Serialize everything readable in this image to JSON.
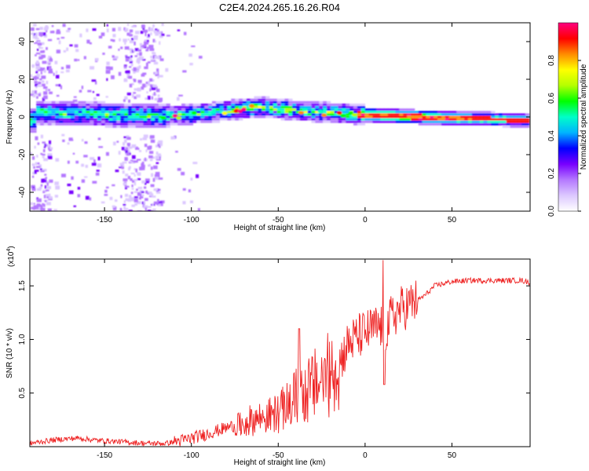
{
  "title": "C2E4.2024.265.16.26.R04",
  "chart_data": [
    {
      "type": "heatmap",
      "title": "C2E4.2024.265.16.26.R04",
      "xlabel": "Height of straight line (km)",
      "ylabel": "Frequency (Hz)",
      "xlim": [
        -193,
        95
      ],
      "ylim": [
        -50,
        50
      ],
      "xticks": [
        -150,
        -100,
        -50,
        0,
        50
      ],
      "yticks": [
        -40,
        -20,
        0,
        20,
        40
      ],
      "colorbar": {
        "label": "Normalized spectral amplitude",
        "range": [
          0,
          1
        ],
        "ticks": [
          "0.0",
          "0.2",
          "0.4",
          "0.6",
          "0.8"
        ],
        "colors": [
          "#ffffff",
          "#dcc8ff",
          "#b478ff",
          "#7800ff",
          "#0000ff",
          "#00b4ff",
          "#00ffc8",
          "#00ff00",
          "#b4ff00",
          "#ffff00",
          "#ff8c00",
          "#ff0000",
          "#ff0080"
        ]
      },
      "band_center_hz": [
        {
          "km": -190,
          "hz": 2
        },
        {
          "km": -150,
          "hz": 1
        },
        {
          "km": -120,
          "hz": 0
        },
        {
          "km": -100,
          "hz": 1
        },
        {
          "km": -80,
          "hz": 3
        },
        {
          "km": -60,
          "hz": 5
        },
        {
          "km": -40,
          "hz": 3
        },
        {
          "km": -20,
          "hz": 2
        },
        {
          "km": -5,
          "hz": 1
        },
        {
          "km": 20,
          "hz": 0
        },
        {
          "km": 50,
          "hz": -1
        },
        {
          "km": 95,
          "hz": -2
        }
      ]
    },
    {
      "type": "line",
      "xlabel": "Height of straight line (km)",
      "ylabel": "SNR (10 * v/v)",
      "y_scale_label": "(x10",
      "y_scale_exp": "4",
      "xlim": [
        -193,
        95
      ],
      "ylim": [
        0,
        1.75
      ],
      "xticks": [
        -150,
        -100,
        -50,
        0,
        50
      ],
      "yticks": [
        "0.5",
        "1.0",
        "1.5"
      ],
      "series": [
        {
          "name": "SNR",
          "color": "#ee2222",
          "x": [
            -193,
            -185,
            -175,
            -165,
            -155,
            -145,
            -135,
            -125,
            -115,
            -105,
            -95,
            -85,
            -75,
            -70,
            -65,
            -60,
            -55,
            -50,
            -45,
            -40,
            -38,
            -35,
            -30,
            -25,
            -20,
            -15,
            -10,
            -5,
            0,
            5,
            10,
            12,
            15,
            20,
            25,
            30,
            35,
            40,
            50,
            60,
            70,
            80,
            90,
            95
          ],
          "y": [
            0.03,
            0.05,
            0.07,
            0.08,
            0.06,
            0.05,
            0.04,
            0.03,
            0.03,
            0.06,
            0.1,
            0.15,
            0.2,
            0.24,
            0.28,
            0.3,
            0.32,
            0.35,
            0.42,
            0.5,
            0.62,
            0.55,
            0.62,
            0.7,
            0.75,
            0.78,
            0.95,
            1.02,
            1.06,
            1.1,
            1.12,
            1.08,
            1.2,
            1.28,
            1.32,
            1.36,
            1.42,
            1.5,
            1.54,
            1.55,
            1.55,
            1.55,
            1.55,
            1.53
          ]
        }
      ]
    }
  ]
}
